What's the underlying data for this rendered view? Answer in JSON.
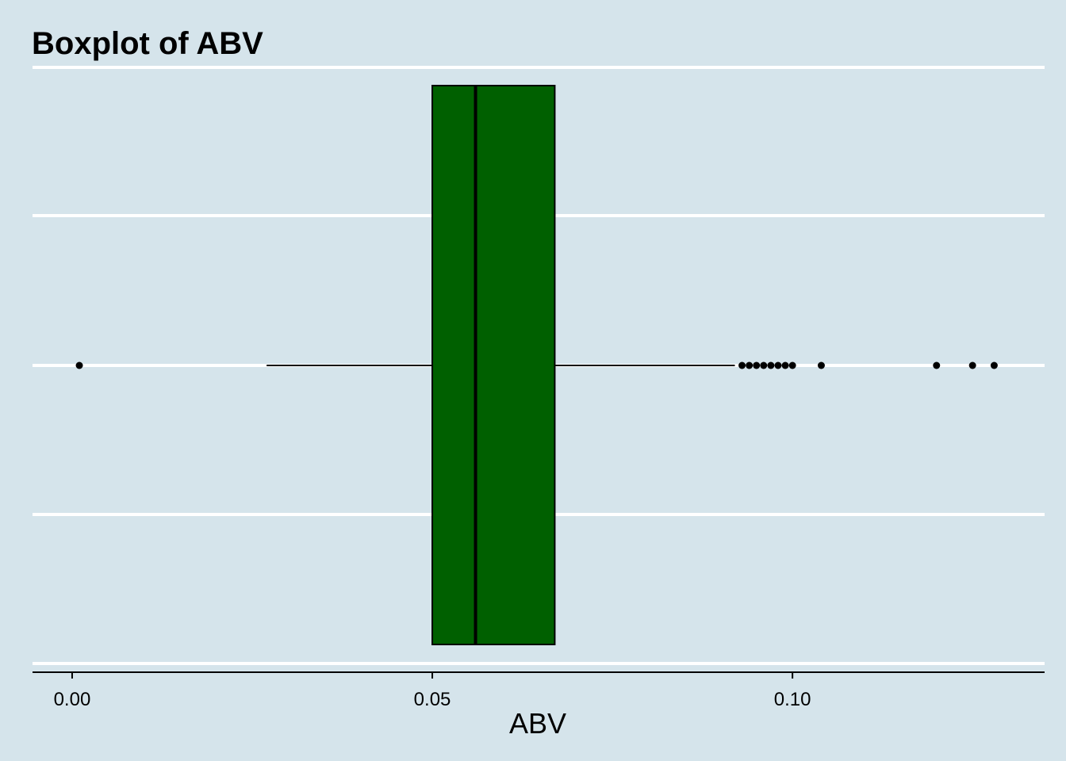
{
  "chart_data": {
    "type": "boxplot",
    "title": "Boxplot of ABV",
    "xlabel": "ABV",
    "ylabel": "",
    "xlim": [
      -0.0055,
      0.135
    ],
    "x_ticks": [
      0.0,
      0.05,
      0.1
    ],
    "x_tick_labels": [
      "0.00",
      "0.05",
      "0.10"
    ],
    "grid": true,
    "orientation": "horizontal",
    "box": {
      "whisker_low": 0.027,
      "q1": 0.05,
      "median": 0.056,
      "q3": 0.067,
      "whisker_high": 0.092
    },
    "outliers": [
      0.001,
      0.093,
      0.094,
      0.095,
      0.096,
      0.097,
      0.098,
      0.099,
      0.1,
      0.104,
      0.12,
      0.125,
      0.128
    ],
    "colors": {
      "background": "#d5e4eb",
      "box_fill": "#006000",
      "grid": "#ffffff",
      "line": "#000000"
    }
  }
}
